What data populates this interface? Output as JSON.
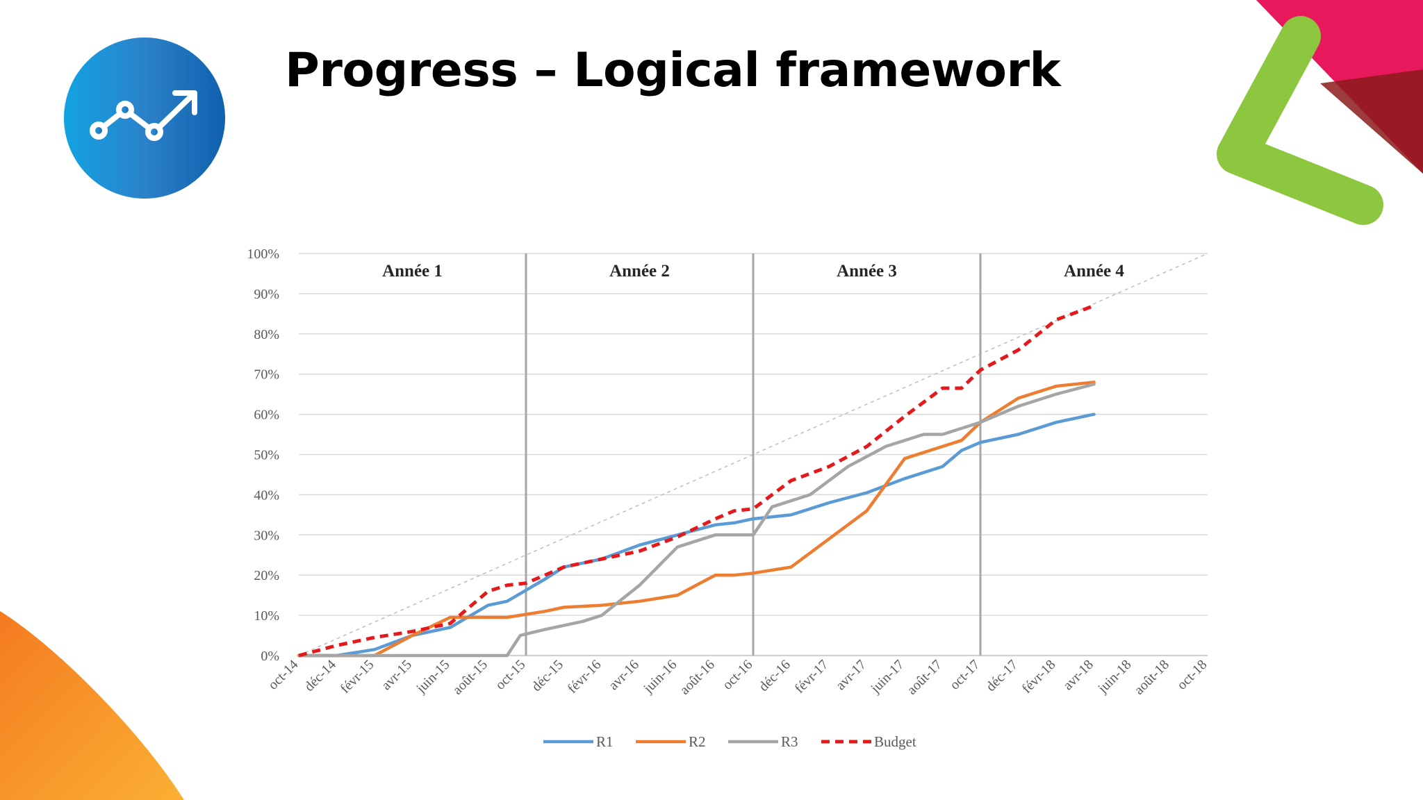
{
  "slide": {
    "title": "Progress – Logical framework",
    "colors": {
      "logo_start": "#12a3e3",
      "logo_end": "#1060ad",
      "accent_green": "#8dc63f",
      "accent_pink": "#e8185c",
      "accent_orange": "#f7931e"
    }
  },
  "chart_data": {
    "type": "line",
    "title": "",
    "xlabel": "",
    "ylabel": "",
    "ylim": [
      0,
      100
    ],
    "y_ticks": [
      "0%",
      "10%",
      "20%",
      "30%",
      "40%",
      "50%",
      "60%",
      "70%",
      "80%",
      "90%",
      "100%"
    ],
    "x_ticks": [
      "oct-14",
      "déc-14",
      "févr-15",
      "avr-15",
      "juin-15",
      "août-15",
      "oct-15",
      "déc-15",
      "févr-16",
      "avr-16",
      "juin-16",
      "août-16",
      "oct-16",
      "déc-16",
      "févr-17",
      "avr-17",
      "juin-17",
      "août-17",
      "oct-17",
      "déc-17",
      "févr-18",
      "avr-18",
      "juin-18",
      "août-18",
      "oct-18"
    ],
    "x_months": 48,
    "year_labels": [
      "Année 1",
      "Année 2",
      "Année 3",
      "Année 4"
    ],
    "year_dividers": [
      12,
      24,
      36
    ],
    "reference_line": {
      "from": [
        0,
        0
      ],
      "to": [
        48,
        100
      ]
    },
    "series": [
      {
        "name": "R1",
        "color": "#5b9bd5",
        "dash": false,
        "points": [
          [
            0,
            0
          ],
          [
            2,
            0
          ],
          [
            4,
            1.5
          ],
          [
            6,
            5
          ],
          [
            8,
            7
          ],
          [
            10,
            12.5
          ],
          [
            11,
            13.5
          ],
          [
            13,
            19
          ],
          [
            14,
            22
          ],
          [
            16,
            24
          ],
          [
            18,
            27.5
          ],
          [
            20,
            30
          ],
          [
            22,
            32.5
          ],
          [
            23,
            33
          ],
          [
            24,
            34
          ],
          [
            26,
            35
          ],
          [
            28,
            38
          ],
          [
            30,
            40.5
          ],
          [
            32,
            44
          ],
          [
            34,
            47
          ],
          [
            35,
            51
          ],
          [
            36,
            53
          ],
          [
            38,
            55
          ],
          [
            40,
            58
          ],
          [
            42,
            60
          ]
        ]
      },
      {
        "name": "R2",
        "color": "#ed7d31",
        "dash": false,
        "points": [
          [
            0,
            0
          ],
          [
            4,
            0
          ],
          [
            6,
            5
          ],
          [
            8,
            9.5
          ],
          [
            9,
            9.5
          ],
          [
            11,
            9.5
          ],
          [
            13,
            11
          ],
          [
            14,
            12
          ],
          [
            16,
            12.5
          ],
          [
            18,
            13.5
          ],
          [
            20,
            15
          ],
          [
            22,
            20
          ],
          [
            23,
            20
          ],
          [
            24,
            20.5
          ],
          [
            26,
            22
          ],
          [
            28,
            29
          ],
          [
            30,
            36
          ],
          [
            32,
            49
          ],
          [
            34,
            52
          ],
          [
            35,
            53.5
          ],
          [
            36,
            58
          ],
          [
            38,
            64
          ],
          [
            40,
            67
          ],
          [
            42,
            68
          ]
        ]
      },
      {
        "name": "R3",
        "color": "#a5a5a5",
        "dash": false,
        "points": [
          [
            0,
            0
          ],
          [
            11,
            0
          ],
          [
            11.7,
            5
          ],
          [
            13,
            6.5
          ],
          [
            15,
            8.5
          ],
          [
            16,
            10
          ],
          [
            18,
            17.5
          ],
          [
            20,
            27
          ],
          [
            22,
            30
          ],
          [
            23,
            30
          ],
          [
            24,
            30
          ],
          [
            25,
            37
          ],
          [
            27,
            40
          ],
          [
            29,
            47
          ],
          [
            31,
            52
          ],
          [
            33,
            55
          ],
          [
            34,
            55
          ],
          [
            36,
            58
          ],
          [
            38,
            62
          ],
          [
            40,
            65
          ],
          [
            42,
            67.5
          ]
        ]
      },
      {
        "name": "Budget",
        "color": "#e31a1c",
        "dash": true,
        "points": [
          [
            0,
            0
          ],
          [
            2,
            2.5
          ],
          [
            4,
            4.5
          ],
          [
            6,
            6
          ],
          [
            8,
            8
          ],
          [
            10,
            16
          ],
          [
            11,
            17.5
          ],
          [
            12,
            18
          ],
          [
            14,
            22
          ],
          [
            16,
            24
          ],
          [
            18,
            26
          ],
          [
            20,
            29.5
          ],
          [
            22,
            34
          ],
          [
            23,
            36
          ],
          [
            24,
            36.5
          ],
          [
            26,
            43.5
          ],
          [
            28,
            47
          ],
          [
            30,
            52
          ],
          [
            32,
            59.5
          ],
          [
            34,
            66.5
          ],
          [
            35,
            66.5
          ],
          [
            36,
            71
          ],
          [
            38,
            76
          ],
          [
            40,
            83.5
          ],
          [
            42,
            87
          ]
        ]
      }
    ]
  }
}
